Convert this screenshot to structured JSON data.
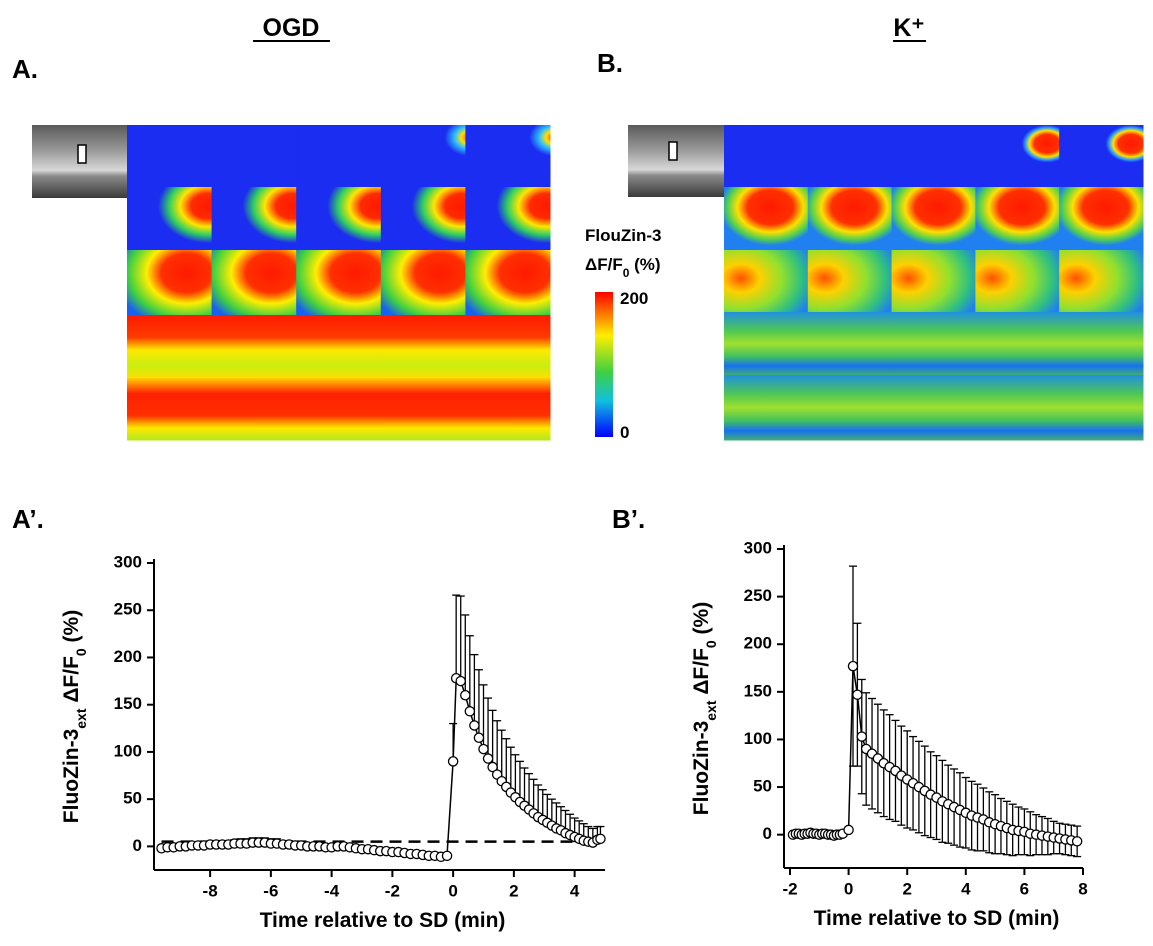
{
  "conditions": [
    "OGD",
    "K⁺"
  ],
  "panel_labels": [
    "A.",
    "B.",
    "A’.",
    "B’."
  ],
  "colorbar": {
    "title": [
      "FlouZin-3",
      "ΔF/F",
      "0",
      " (%)"
    ],
    "max": 200,
    "min": 0
  },
  "chart_data": [
    {
      "type": "line",
      "x_label": "Time relative to SD (min)",
      "y_label": [
        "FluoZin-3",
        "ext",
        " ΔF/F",
        "0",
        " (%)"
      ],
      "xlim": [
        -9.65,
        5.0
      ],
      "xticks": [
        -8,
        -6,
        -4,
        -2,
        0,
        2,
        4
      ],
      "ylim": [
        -25,
        300
      ],
      "yticks": [
        0,
        50,
        100,
        150,
        200,
        250,
        300
      ],
      "reference_y": 5,
      "error_direction": "up",
      "color": "#000000",
      "x": [
        -9.6,
        -9.4,
        -9.2,
        -9.0,
        -8.8,
        -8.6,
        -8.4,
        -8.2,
        -8.0,
        -7.8,
        -7.6,
        -7.4,
        -7.2,
        -7.0,
        -6.8,
        -6.6,
        -6.4,
        -6.2,
        -6.0,
        -5.8,
        -5.6,
        -5.4,
        -5.2,
        -5.0,
        -4.8,
        -4.6,
        -4.4,
        -4.2,
        -4.0,
        -3.8,
        -3.6,
        -3.4,
        -3.2,
        -3.0,
        -2.8,
        -2.6,
        -2.4,
        -2.2,
        -2.0,
        -1.8,
        -1.6,
        -1.4,
        -1.2,
        -1.0,
        -0.8,
        -0.6,
        -0.4,
        -0.2,
        0,
        0.1,
        0.25,
        0.4,
        0.55,
        0.7,
        0.85,
        1.0,
        1.15,
        1.3,
        1.45,
        1.6,
        1.75,
        1.9,
        2.05,
        2.2,
        2.35,
        2.5,
        2.65,
        2.8,
        2.95,
        3.1,
        3.25,
        3.4,
        3.55,
        3.7,
        3.85,
        4.0,
        4.15,
        4.3,
        4.45,
        4.6,
        4.75,
        4.85
      ],
      "values": [
        -2,
        -1,
        -1,
        0,
        0,
        1,
        1,
        1,
        2,
        2,
        2,
        2,
        3,
        3,
        3,
        4,
        4,
        4,
        3,
        3,
        2,
        2,
        1,
        1,
        0,
        0,
        0,
        -1,
        -1,
        0,
        0,
        -1,
        -2,
        -3,
        -3,
        -4,
        -5,
        -5,
        -6,
        -6,
        -7,
        -8,
        -8,
        -9,
        -10,
        -10,
        -11,
        -10,
        90,
        178,
        175,
        160,
        143,
        128,
        115,
        103,
        93,
        84,
        76,
        69,
        63,
        57,
        52,
        47,
        43,
        39,
        35,
        31,
        28,
        25,
        22,
        19,
        17,
        14,
        12,
        10,
        8,
        6,
        5,
        4,
        7,
        8
      ],
      "errors": [
        3,
        3,
        3,
        3,
        3,
        3,
        3,
        3,
        3,
        3,
        4,
        4,
        4,
        5,
        5,
        5,
        5,
        5,
        5,
        5,
        4,
        4,
        4,
        3,
        3,
        3,
        3,
        3,
        3,
        3,
        3,
        3,
        3,
        3,
        3,
        3,
        3,
        3,
        3,
        3,
        3,
        3,
        3,
        3,
        3,
        3,
        3,
        3,
        40,
        88,
        90,
        85,
        80,
        75,
        72,
        68,
        64,
        60,
        57,
        54,
        51,
        48,
        45,
        43,
        40,
        38,
        36,
        34,
        32,
        30,
        28,
        27,
        25,
        24,
        22,
        20,
        19,
        18,
        16,
        15,
        14,
        13
      ]
    },
    {
      "type": "line",
      "x_label": "Time relative to SD (min)",
      "y_label": [
        "FluoZin-3",
        "ext",
        " ΔF/F",
        "0",
        " (%)"
      ],
      "xlim": [
        -2,
        8
      ],
      "xticks": [
        -2,
        0,
        2,
        4,
        6,
        8
      ],
      "ylim": [
        -35,
        300
      ],
      "yticks": [
        0,
        50,
        100,
        150,
        200,
        250,
        300
      ],
      "error_direction": "both",
      "color": "#000000",
      "x": [
        -1.9,
        -1.8,
        -1.7,
        -1.6,
        -1.5,
        -1.4,
        -1.3,
        -1.2,
        -1.1,
        -1.0,
        -0.9,
        -0.8,
        -0.7,
        -0.6,
        -0.5,
        -0.4,
        -0.3,
        -0.2,
        0,
        0.15,
        0.3,
        0.45,
        0.6,
        0.8,
        1.0,
        1.2,
        1.4,
        1.6,
        1.8,
        2.0,
        2.2,
        2.4,
        2.6,
        2.8,
        3.0,
        3.2,
        3.4,
        3.6,
        3.8,
        4.0,
        4.2,
        4.4,
        4.6,
        4.8,
        5.0,
        5.2,
        5.4,
        5.6,
        5.8,
        6.0,
        6.2,
        6.4,
        6.6,
        6.8,
        7.0,
        7.2,
        7.4,
        7.6,
        7.8
      ],
      "values": [
        0,
        1,
        1,
        0,
        1,
        1,
        2,
        1,
        1,
        0,
        1,
        1,
        0,
        0,
        -1,
        0,
        0,
        1,
        5,
        177,
        147,
        103,
        90,
        85,
        80,
        75,
        71,
        67,
        62,
        58,
        54,
        50,
        46,
        42,
        39,
        35,
        32,
        29,
        26,
        23,
        20,
        18,
        16,
        13,
        11,
        9,
        7,
        5,
        4,
        3,
        1,
        0,
        -1,
        -2,
        -3,
        -4,
        -5,
        -6,
        -7
      ],
      "errors": [
        2,
        2,
        2,
        2,
        2,
        2,
        2,
        2,
        2,
        2,
        2,
        2,
        2,
        2,
        2,
        2,
        2,
        2,
        3,
        105,
        75,
        60,
        59,
        58,
        57,
        56,
        55,
        53,
        52,
        51,
        49,
        48,
        47,
        45,
        44,
        43,
        41,
        40,
        39,
        37,
        36,
        35,
        33,
        32,
        31,
        29,
        28,
        27,
        25,
        24,
        23,
        21,
        20,
        19,
        17,
        16,
        16,
        16,
        16
      ]
    }
  ]
}
